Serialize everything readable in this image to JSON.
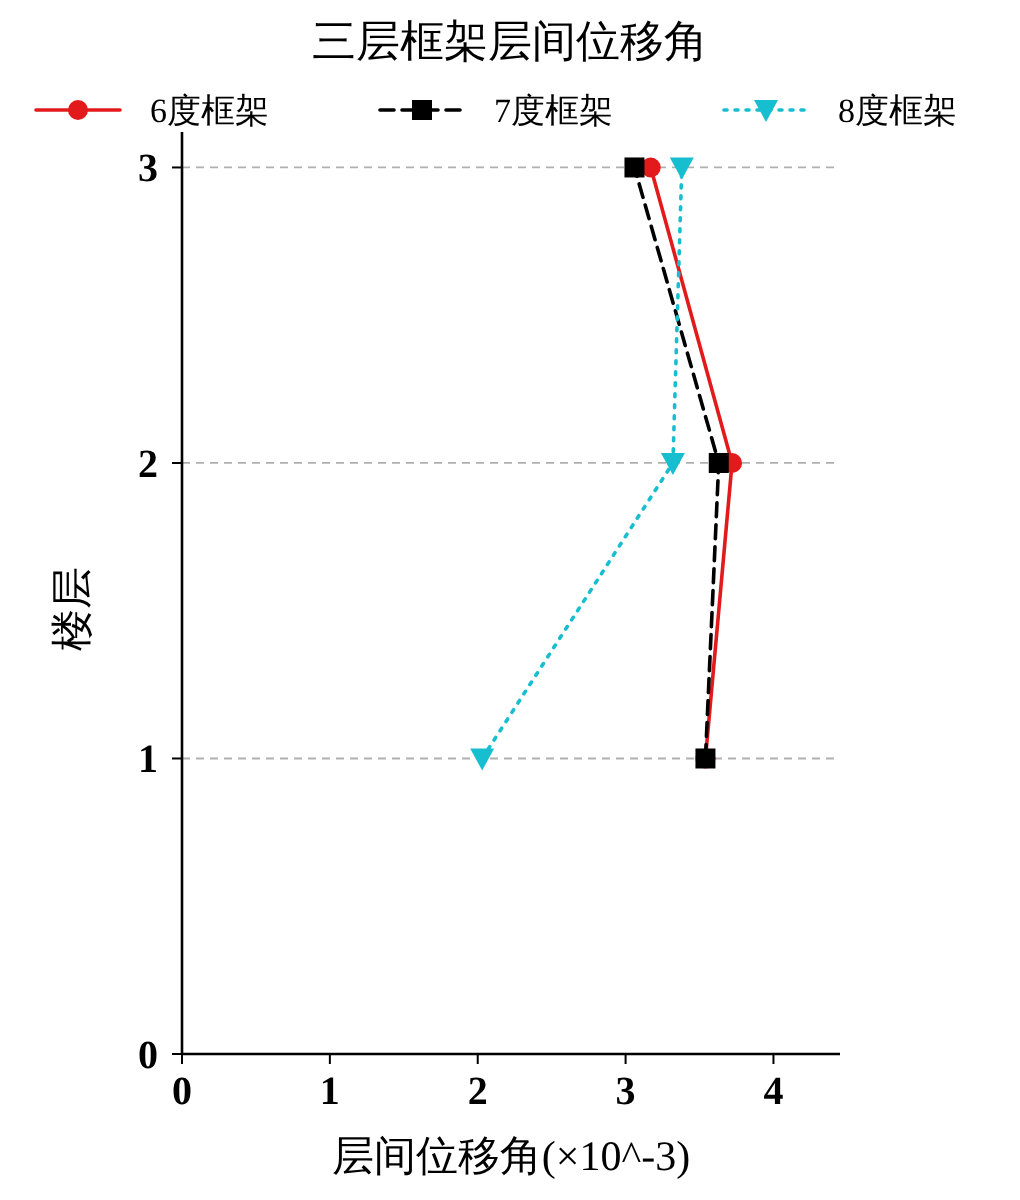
{
  "chart_data": {
    "type": "line",
    "title": "三层框架层间位移角",
    "xlabel": "层间位移角(×10^-3)",
    "ylabel": "楼层",
    "xlim": [
      0,
      4.45
    ],
    "xticks": [
      0,
      1,
      2,
      3,
      4
    ],
    "ylim": [
      0,
      3.12
    ],
    "yticks": [
      0,
      1,
      2,
      3
    ],
    "grid": "y",
    "legend": "top",
    "series": [
      {
        "name": "6度框架",
        "color": "#e31a1c",
        "x": [
          3.54,
          3.72,
          3.17
        ],
        "values": [
          1,
          2,
          3
        ],
        "marker": "circle",
        "line_style": "solid"
      },
      {
        "name": "7度框架",
        "color": "#000000",
        "x": [
          3.54,
          3.63,
          3.06
        ],
        "values": [
          1,
          2,
          3
        ],
        "marker": "square",
        "line_style": "dashed"
      },
      {
        "name": "8度框架",
        "color": "#17becf",
        "x": [
          2.03,
          3.32,
          3.38
        ],
        "values": [
          1,
          2,
          3
        ],
        "marker": "triangle",
        "line_style": "dotted"
      }
    ]
  }
}
